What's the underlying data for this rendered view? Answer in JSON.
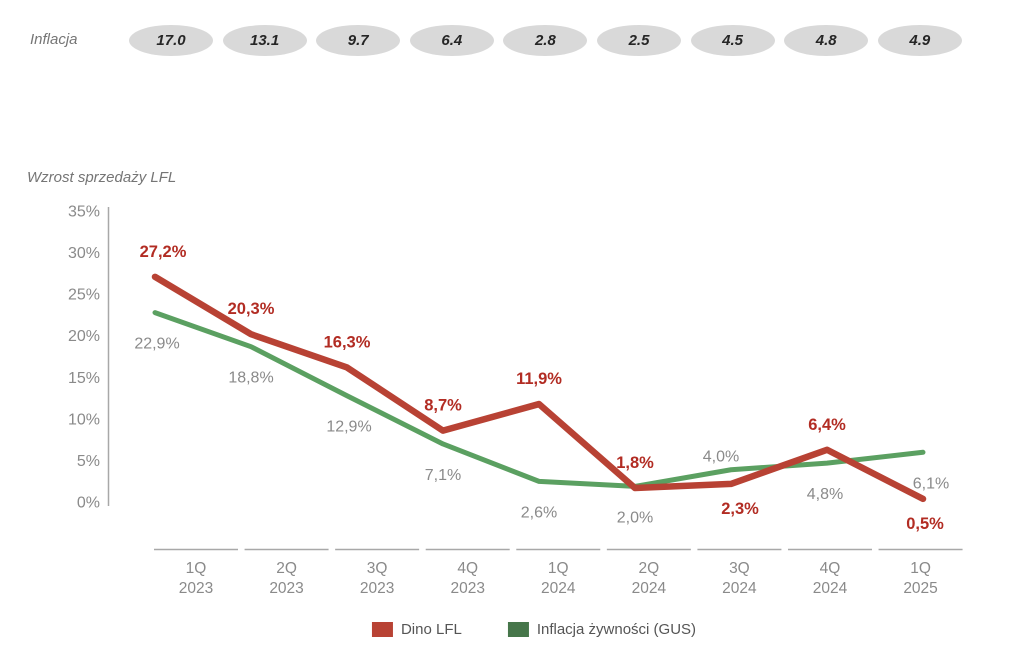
{
  "inflation_row": {
    "label": "Inflacja",
    "values": [
      "17.0",
      "13.1",
      "9.7",
      "6.4",
      "2.8",
      "2.5",
      "4.5",
      "4.8",
      "4.9"
    ]
  },
  "legend": {
    "items": [
      {
        "label": "Dino LFL",
        "color": "#b84234"
      },
      {
        "label": "Inflacja żywności (GUS)",
        "color": "#46764a"
      }
    ]
  },
  "colors": {
    "dino_line": "#b84234",
    "dino_label": "#b22c23",
    "gus_line": "#5ba061",
    "gus_legend": "#46764a",
    "gray_label": "#8a8a8a",
    "axis_gray": "#8a8a8a",
    "axis_line": "#a8a8a8",
    "badge_fill": "#d9d9d9",
    "badge_text": "#262626",
    "muted_text": "#757575"
  },
  "chart_data": {
    "type": "line",
    "title": "Wzrost sprzedaży LFL",
    "categories": [
      "1Q 2023",
      "2Q 2023",
      "3Q 2023",
      "4Q 2023",
      "1Q 2024",
      "2Q 2024",
      "3Q 2024",
      "4Q 2024",
      "1Q 2025"
    ],
    "series": [
      {
        "name": "Dino LFL",
        "values": [
          27.2,
          20.3,
          16.3,
          8.7,
          11.9,
          1.8,
          2.3,
          6.4,
          0.5
        ],
        "labels": [
          "27,2%",
          "20,3%",
          "16,3%",
          "8,7%",
          "11,9%",
          "1,8%",
          "2,3%",
          "6,4%",
          "0,5%"
        ],
        "label_positions": [
          "above",
          "above",
          "above",
          "above",
          "above",
          "above",
          "below",
          "above",
          "below"
        ]
      },
      {
        "name": "Inflacja żywności (GUS)",
        "values": [
          22.9,
          18.8,
          12.9,
          7.1,
          2.6,
          2.0,
          4.0,
          4.8,
          6.1
        ],
        "labels": [
          "22,9%",
          "18,8%",
          "12,9%",
          "7,1%",
          "2,6%",
          "2,0%",
          "4,0%",
          "4,8%",
          "6,1%"
        ],
        "label_positions": [
          "below",
          "below",
          "below",
          "below",
          "below",
          "below",
          "above",
          "below",
          "below"
        ]
      }
    ],
    "inflation_cpi": {
      "label": "Inflacja",
      "values": [
        17.0,
        13.1,
        9.7,
        6.4,
        2.8,
        2.5,
        4.5,
        4.8,
        4.9
      ]
    },
    "ylabel": "Wzrost sprzedaży LFL",
    "ylim": [
      0,
      35
    ],
    "ytick_step": 5,
    "ytick_labels": [
      "35%",
      "30%",
      "25%",
      "20%",
      "15%",
      "10%",
      "5%",
      "0%"
    ],
    "grid": false,
    "legend_position": "bottom"
  }
}
